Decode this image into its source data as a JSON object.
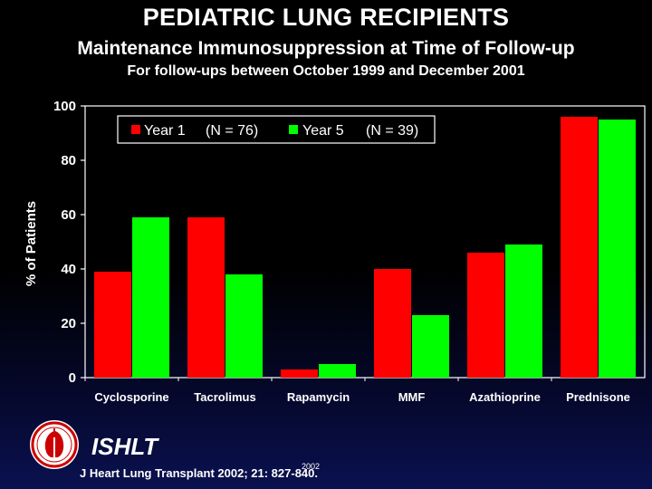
{
  "header": {
    "title": "PEDIATRIC LUNG RECIPIENTS",
    "subtitle": "Maintenance Immunosuppression at Time of Follow-up",
    "subtitle2": "For follow-ups between October 1999 and December 2001"
  },
  "chart_data": {
    "type": "bar",
    "title": "Maintenance Immunosuppression at Time of Follow-up",
    "xlabel": "",
    "ylabel": "% of Patients",
    "ylim": [
      0,
      100
    ],
    "yticks": [
      0,
      20,
      40,
      60,
      80,
      100
    ],
    "grid": false,
    "legend_position": "top",
    "categories": [
      "Cyclosporine",
      "Tacrolimus",
      "Rapamycin",
      "MMF",
      "Azathioprine",
      "Prednisone"
    ],
    "series": [
      {
        "name": "Year 1",
        "n_label": "(N = 76)",
        "color": "#ff0000",
        "values": [
          39,
          59,
          3,
          40,
          46,
          96
        ]
      },
      {
        "name": "Year 5",
        "n_label": "(N = 39)",
        "color": "#00ff00",
        "values": [
          59,
          38,
          5,
          23,
          49,
          95
        ]
      }
    ]
  },
  "footer": {
    "org": "ISHLT",
    "year_mark": "2002",
    "citation": "J Heart Lung Transplant 2002; 21: 827-840."
  },
  "colors": {
    "background": "#000000",
    "axis": "#ffffff",
    "year1": "#ff0000",
    "year5": "#00ff00"
  }
}
